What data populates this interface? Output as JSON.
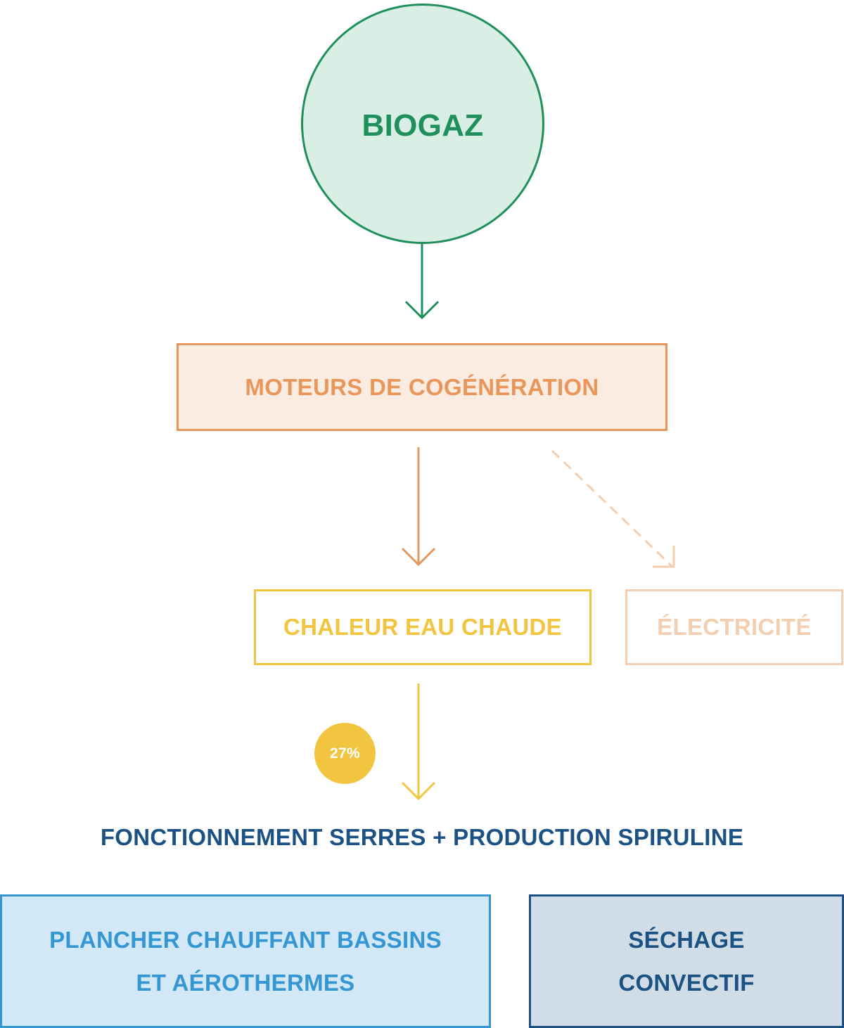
{
  "nodes": {
    "biogaz": "BIOGAZ",
    "cogeneration": "MOTEURS DE COGÉNÉRATION",
    "chaleur": "CHALEUR EAU CHAUDE",
    "electricite": "ÉLECTRICITÉ",
    "percent": "27%",
    "target": "FONCTIONNEMENT SERRES + PRODUCTION SPIRULINE",
    "plancher": [
      "PLANCHER CHAUFFANT BASSINS",
      "ET AÉROTHERMES"
    ],
    "sechage": [
      "SÉCHAGE",
      "CONVECTIF"
    ]
  },
  "colors": {
    "green": "#1f8f5c",
    "green_fill": "#d9eee4",
    "orange": "#e9965b",
    "orange_fill": "#fbece2",
    "yellow": "#f1c540",
    "peach": "#f3cfb2",
    "blue_light": "#3496d2",
    "blue_light_fill": "#d3e8f6",
    "blue_dark": "#1b5283",
    "blue_dark_fill": "#d0dde7"
  }
}
